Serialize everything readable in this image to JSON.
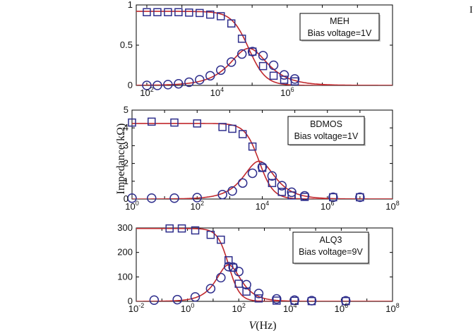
{
  "figure": {
    "ylabel": "Impedance(kΩ)",
    "xlabel_var": "V",
    "xlabel_unit": "(Hz)",
    "edge_mark": "I"
  },
  "colors": {
    "fit": "#c0282d",
    "marker": "#2e2e8c",
    "axis": "#000000"
  },
  "chart_data": [
    {
      "type": "scatter",
      "title": "",
      "xscale": "log",
      "xlim": [
        50,
        1000000000
      ],
      "ylim": [
        0,
        1
      ],
      "x_tick_labels": [
        {
          "text": "10",
          "exp": "2",
          "x": 100
        },
        {
          "text": "10",
          "exp": "4",
          "x": 10000
        },
        {
          "text": "10",
          "exp": "6",
          "x": 1000000
        }
      ],
      "y_tick_labels": [
        {
          "text": "0",
          "y": 0
        },
        {
          "text": "0.5",
          "y": 0.5
        },
        {
          "text": "1",
          "y": 1
        }
      ],
      "legend": {
        "label": "MEH",
        "sub": "Bias voltage=1V",
        "position": "top-right"
      },
      "fit_model": {
        "R": 0.92,
        "fc": 80000,
        "rolloff": 0.9
      },
      "series": [
        {
          "marker": "square",
          "x": [
            100,
            200,
            400,
            800,
            1600,
            3200,
            6400,
            12800,
            25600,
            51200,
            102400,
            204800,
            409600,
            819200,
            1638400
          ],
          "y": [
            0.91,
            0.91,
            0.91,
            0.91,
            0.905,
            0.9,
            0.88,
            0.86,
            0.77,
            0.58,
            0.42,
            0.24,
            0.12,
            0.07,
            0.05
          ]
        },
        {
          "marker": "circle",
          "x": [
            100,
            200,
            400,
            800,
            1600,
            3200,
            6400,
            12800,
            25600,
            51200,
            102400,
            204800,
            409600,
            819200,
            1638400
          ],
          "y": [
            0.0,
            0.0,
            0.01,
            0.02,
            0.04,
            0.07,
            0.12,
            0.19,
            0.29,
            0.39,
            0.42,
            0.37,
            0.25,
            0.13,
            0.08
          ]
        }
      ]
    },
    {
      "type": "scatter",
      "title": "",
      "xscale": "log",
      "xlim": [
        1,
        100000000
      ],
      "ylim": [
        0,
        5
      ],
      "x_tick_labels": [
        {
          "text": "10",
          "exp": "0",
          "x": 1
        },
        {
          "text": "10",
          "exp": "2",
          "x": 100
        },
        {
          "text": "10",
          "exp": "4",
          "x": 10000
        },
        {
          "text": "10",
          "exp": "6",
          "x": 1000000
        },
        {
          "text": "10",
          "exp": "8",
          "x": 100000000
        }
      ],
      "y_tick_labels": [
        {
          "text": "0",
          "y": 0
        },
        {
          "text": "1",
          "y": 1
        },
        {
          "text": "2",
          "y": 2
        },
        {
          "text": "3",
          "y": 3
        },
        {
          "text": "4",
          "y": 4
        },
        {
          "text": "5",
          "y": 5
        }
      ],
      "legend": {
        "label": "BDMOS",
        "sub": "Bias voltage=1V",
        "position": "top-right"
      },
      "fit_model": {
        "R": 4.25,
        "fc": 8000,
        "rolloff": 1.0
      },
      "series": [
        {
          "marker": "square",
          "x": [
            1,
            4,
            20,
            100,
            600,
            1200,
            2500,
            5000,
            10000,
            20000,
            40000,
            80000,
            200000,
            1500000,
            10000000
          ],
          "y": [
            4.3,
            4.35,
            4.3,
            4.25,
            4.05,
            3.95,
            3.65,
            2.95,
            1.75,
            0.9,
            0.4,
            0.2,
            0.12,
            0.1,
            0.1
          ]
        },
        {
          "marker": "circle",
          "x": [
            1,
            4,
            20,
            100,
            600,
            1200,
            2500,
            5000,
            10000,
            20000,
            40000,
            80000,
            200000,
            1500000,
            10000000
          ],
          "y": [
            0.05,
            0.05,
            0.05,
            0.08,
            0.25,
            0.45,
            0.9,
            1.45,
            1.8,
            1.3,
            0.75,
            0.38,
            0.18,
            0.1,
            0.1
          ]
        }
      ]
    },
    {
      "type": "scatter",
      "title": "",
      "xscale": "log",
      "xlim": [
        0.01,
        100000000
      ],
      "ylim": [
        0,
        300
      ],
      "x_tick_labels": [
        {
          "text": "10",
          "exp": "-2",
          "x": 0.01
        },
        {
          "text": "10",
          "exp": "0",
          "x": 1
        },
        {
          "text": "10",
          "exp": "2",
          "x": 100
        },
        {
          "text": "10",
          "exp": "4",
          "x": 10000
        },
        {
          "text": "10",
          "exp": "6",
          "x": 1000000
        },
        {
          "text": "10",
          "exp": "8",
          "x": 100000000
        }
      ],
      "y_tick_labels": [
        {
          "text": "0",
          "y": 0
        },
        {
          "text": "100",
          "y": 100
        },
        {
          "text": "200",
          "y": 200
        },
        {
          "text": "300",
          "y": 300
        }
      ],
      "legend": {
        "label": "ALQ3",
        "sub": "Bias voltage=9V",
        "position": "top-right"
      },
      "fit_model": {
        "R": 298,
        "fc": 40,
        "rolloff": 1.0
      },
      "series": [
        {
          "marker": "square",
          "x": [
            0.2,
            0.6,
            2,
            8,
            20,
            40,
            60,
            100,
            200,
            600,
            3000,
            15000,
            70000,
            1500000
          ],
          "y": [
            298,
            298,
            290,
            272,
            252,
            168,
            138,
            72,
            40,
            12,
            3,
            2,
            1,
            1
          ]
        },
        {
          "marker": "circle",
          "x": [
            0.05,
            0.4,
            2,
            8,
            20,
            40,
            60,
            100,
            200,
            600,
            3000,
            15000,
            70000,
            1500000
          ],
          "y": [
            5,
            7,
            18,
            52,
            97,
            142,
            140,
            122,
            68,
            32,
            10,
            5,
            3,
            2
          ]
        }
      ]
    }
  ]
}
